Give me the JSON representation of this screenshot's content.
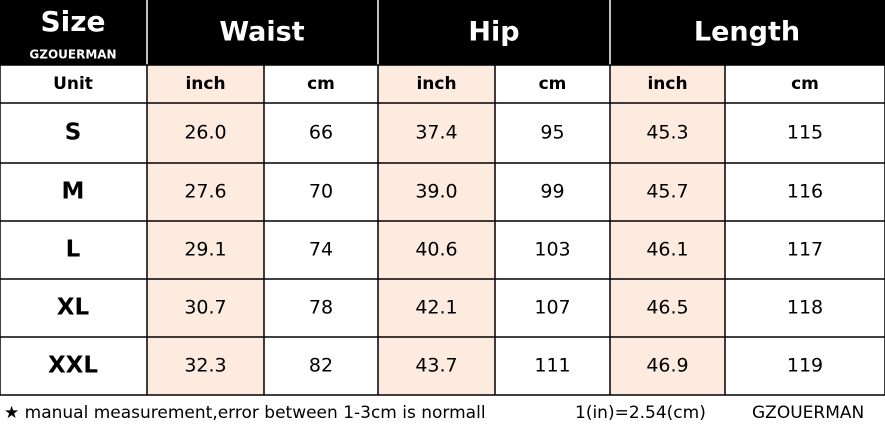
{
  "header": {
    "title": "Size",
    "brand": "GZOUERMAN",
    "groups": [
      "Waist",
      "Hip",
      "Length"
    ]
  },
  "units": [
    "Unit",
    "inch",
    "cm",
    "inch",
    "cm",
    "inch",
    "cm"
  ],
  "rows": [
    [
      "S",
      "26.0",
      "66",
      "37.4",
      "95",
      "45.3",
      "115"
    ],
    [
      "M",
      "27.6",
      "70",
      "39.0",
      "99",
      "45.7",
      "116"
    ],
    [
      "L",
      "29.1",
      "74",
      "40.6",
      "103",
      "46.1",
      "117"
    ],
    [
      "XL",
      "30.7",
      "78",
      "42.1",
      "107",
      "46.5",
      "118"
    ],
    [
      "XXL",
      "32.3",
      "82",
      "43.7",
      "111",
      "46.9",
      "119"
    ]
  ],
  "footer": {
    "note": "★ manual measurement,error between 1-3cm is normall",
    "conversion": "1(in)=2.54(cm)",
    "brand": "GZOUERMAN"
  }
}
